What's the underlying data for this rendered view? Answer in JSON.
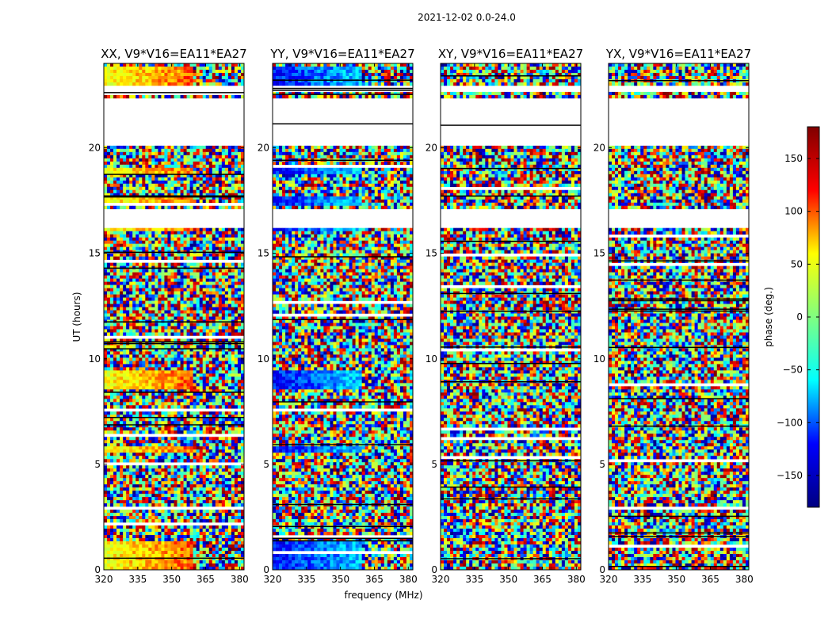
{
  "chart_data": {
    "type": "heatmap",
    "suptitle": "2021-12-02 0.0-24.0",
    "xlabel": "frequency (MHz)",
    "ylabel": "UT (hours)",
    "xlim": [
      320,
      382
    ],
    "ylim": [
      0,
      24
    ],
    "xticks": [
      "320",
      "335",
      "350",
      "365",
      "380"
    ],
    "xtick_values": [
      320,
      335,
      350,
      365,
      380
    ],
    "yticks": [
      "0",
      "5",
      "10",
      "15",
      "20"
    ],
    "ytick_values": [
      0,
      5,
      10,
      15,
      20
    ],
    "colorbar": {
      "label": "phase (deg.)",
      "range": [
        -180,
        180
      ],
      "ticks": [
        "150",
        "100",
        "50",
        "0",
        "−50",
        "−100",
        "−150"
      ],
      "tick_values": [
        150,
        100,
        50,
        0,
        -50,
        -100,
        -150
      ],
      "colormap": "jet",
      "stops": [
        "#000080",
        "#0000ff",
        "#00ffff",
        "#80ff80",
        "#ffff00",
        "#ff0000",
        "#800000"
      ]
    },
    "panels": [
      {
        "name": "XX",
        "title": "XX, V9*V16=EA11*EA27",
        "coherent_phase_deg": 50
      },
      {
        "name": "YY",
        "title": "YY, V9*V16=EA11*EA27",
        "coherent_phase_deg": -120
      },
      {
        "name": "XY",
        "title": "XY, V9*V16=EA11*EA27",
        "coherent_phase_deg": null
      },
      {
        "name": "YX",
        "title": "YX, V9*V16=EA11*EA27",
        "coherent_phase_deg": null
      }
    ],
    "flagged_ut_ranges_hours": [
      [
        20.1,
        22.3
      ],
      [
        16.2,
        17.1
      ],
      [
        22.6,
        22.9
      ]
    ],
    "high_coherence_ut_ranges_hours": [
      [
        0.0,
        1.4
      ],
      [
        5.5,
        5.8
      ],
      [
        8.6,
        9.4
      ],
      [
        16.1,
        16.3
      ],
      [
        17.2,
        17.7
      ],
      [
        18.8,
        19.0
      ],
      [
        23.0,
        23.9
      ]
    ]
  }
}
